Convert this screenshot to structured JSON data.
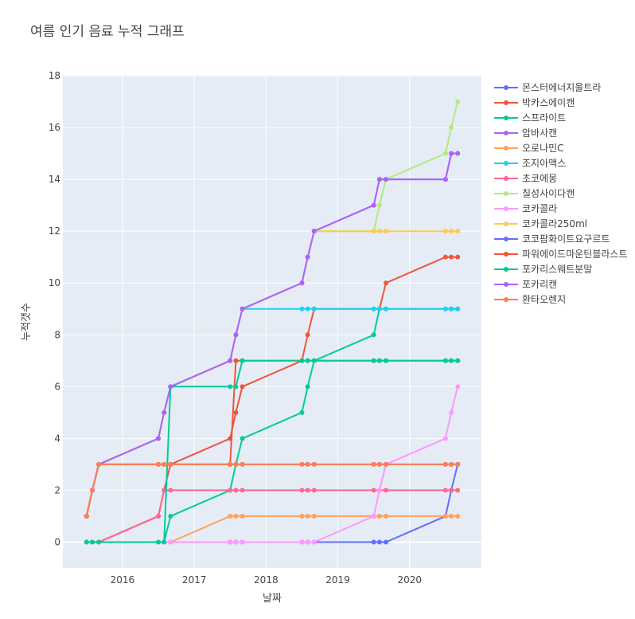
{
  "chart_data": {
    "type": "line",
    "title": "여름 인기 음료 누적 그래프",
    "xlabel": "날짜",
    "ylabel": "누적갯수",
    "xlim": [
      2015.17,
      2021.0
    ],
    "ylim": [
      -1,
      18
    ],
    "xticks": [
      2016,
      2017,
      2018,
      2019,
      2020
    ],
    "yticks": [
      0,
      2,
      4,
      6,
      8,
      10,
      12,
      14,
      16,
      18
    ],
    "grid": true,
    "legend_position": "right",
    "x": [
      2015.5,
      2015.58,
      2015.67,
      2016.5,
      2016.58,
      2016.67,
      2017.5,
      2017.58,
      2017.67,
      2018.5,
      2018.58,
      2018.67,
      2019.5,
      2019.58,
      2019.67,
      2020.5,
      2020.58,
      2020.67
    ],
    "series": [
      {
        "name": "몬스터에너지울트라",
        "color": "#636efa",
        "values": [
          0,
          0,
          0,
          0,
          0,
          0,
          0,
          0,
          0,
          0,
          0,
          0,
          0,
          0,
          0,
          1,
          2,
          3
        ]
      },
      {
        "name": "박카스에이캔",
        "color": "#ef553b",
        "values": [
          0,
          0,
          0,
          1,
          2,
          3,
          4,
          5,
          6,
          7,
          8,
          9,
          9,
          9,
          10,
          11,
          11,
          11
        ]
      },
      {
        "name": "스프라이트",
        "color": "#00cc96",
        "values": [
          0,
          0,
          0,
          0,
          0,
          1,
          2,
          3,
          4,
          5,
          6,
          7,
          8,
          9,
          9,
          9,
          9,
          9
        ]
      },
      {
        "name": "암바사캔",
        "color": "#ab63fa",
        "values": [
          1,
          2,
          3,
          4,
          5,
          6,
          7,
          8,
          9,
          10,
          11,
          12,
          13,
          14,
          14,
          14,
          15,
          15
        ]
      },
      {
        "name": "오로나민C",
        "color": "#ffa15a",
        "values": [
          0,
          0,
          0,
          0,
          0,
          0,
          1,
          1,
          1,
          1,
          1,
          1,
          1,
          1,
          1,
          1,
          1,
          1
        ]
      },
      {
        "name": "조지아맥스",
        "color": "#19d3f3",
        "values": [
          1,
          2,
          3,
          4,
          5,
          6,
          7,
          8,
          9,
          9,
          9,
          9,
          9,
          9,
          9,
          9,
          9,
          9
        ]
      },
      {
        "name": "초코에몽",
        "color": "#ff6692",
        "values": [
          0,
          0,
          0,
          1,
          2,
          2,
          2,
          2,
          2,
          2,
          2,
          2,
          2,
          2,
          2,
          2,
          2,
          2
        ]
      },
      {
        "name": "칠성사이다캔",
        "color": "#b6e880",
        "values": [
          1,
          2,
          3,
          4,
          5,
          6,
          7,
          8,
          9,
          10,
          11,
          12,
          12,
          13,
          14,
          15,
          16,
          17
        ]
      },
      {
        "name": "코카콜라",
        "color": "#ff97ff",
        "values": [
          0,
          0,
          0,
          0,
          0,
          0,
          0,
          0,
          0,
          0,
          0,
          0,
          1,
          2,
          3,
          4,
          5,
          6
        ]
      },
      {
        "name": "코카콜라250ml",
        "color": "#fecb52",
        "values": [
          1,
          2,
          3,
          4,
          5,
          6,
          7,
          8,
          9,
          10,
          11,
          12,
          12,
          12,
          12,
          12,
          12,
          12
        ]
      },
      {
        "name": "코코팜화이트요구르트",
        "color": "#636efa",
        "values": [
          1,
          2,
          3,
          3,
          3,
          3,
          3,
          3,
          3,
          3,
          3,
          3,
          3,
          3,
          3,
          3,
          3,
          3
        ]
      },
      {
        "name": "파워에이드마운틴블라스트",
        "color": "#ef553b",
        "values": [
          1,
          2,
          3,
          3,
          3,
          3,
          3,
          7,
          7,
          7,
          7,
          7,
          7,
          7,
          7,
          7,
          7,
          7
        ]
      },
      {
        "name": "포카리스웨트분말",
        "color": "#00cc96",
        "values": [
          0,
          0,
          0,
          0,
          0,
          6,
          6,
          6,
          7,
          7,
          7,
          7,
          7,
          7,
          7,
          7,
          7,
          7
        ]
      },
      {
        "name": "포카리캔",
        "color": "#ab63fa",
        "values": [
          1,
          2,
          3,
          4,
          5,
          6,
          7,
          8,
          9,
          10,
          11,
          12,
          13,
          14,
          14,
          14,
          15,
          15
        ]
      },
      {
        "name": "환타오렌지",
        "color": "#ff7f50",
        "values": [
          1,
          2,
          3,
          3,
          3,
          3,
          3,
          3,
          3,
          3,
          3,
          3,
          3,
          3,
          3,
          3,
          3,
          3
        ]
      }
    ]
  }
}
